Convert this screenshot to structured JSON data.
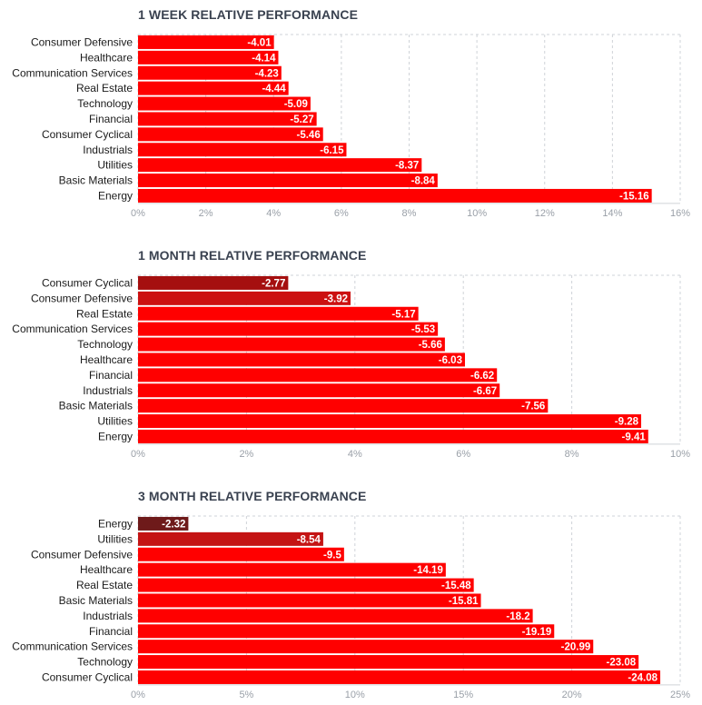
{
  "chart_data": [
    {
      "type": "bar",
      "orientation": "horizontal",
      "title": "1 WEEK RELATIVE PERFORMANCE",
      "categories": [
        "Consumer Defensive",
        "Healthcare",
        "Communication Services",
        "Real Estate",
        "Technology",
        "Financial",
        "Consumer Cyclical",
        "Industrials",
        "Utilities",
        "Basic Materials",
        "Energy"
      ],
      "values": [
        -4.01,
        -4.14,
        -4.23,
        -4.44,
        -5.09,
        -5.27,
        -5.46,
        -6.15,
        -8.37,
        -8.84,
        -15.16
      ],
      "value_labels": [
        "-4.01",
        "-4.14",
        "-4.23",
        "-4.44",
        "-5.09",
        "-5.27",
        "-5.46",
        "-6.15",
        "-8.37",
        "-8.84",
        "-15.16"
      ],
      "bar_colors": [
        "#ff0000",
        "#ff0000",
        "#ff0000",
        "#ff0000",
        "#ff0000",
        "#ff0000",
        "#ff0000",
        "#ff0000",
        "#ff0000",
        "#ff0000",
        "#ff0000"
      ],
      "xlim": [
        0,
        16
      ],
      "xticks": [
        "0%",
        "2%",
        "4%",
        "6%",
        "8%",
        "10%",
        "12%",
        "14%",
        "16%"
      ],
      "grid": true
    },
    {
      "type": "bar",
      "orientation": "horizontal",
      "title": "1 MONTH RELATIVE PERFORMANCE",
      "categories": [
        "Consumer Cyclical",
        "Consumer Defensive",
        "Real Estate",
        "Communication Services",
        "Technology",
        "Healthcare",
        "Financial",
        "Industrials",
        "Basic Materials",
        "Utilities",
        "Energy"
      ],
      "values": [
        -2.77,
        -3.92,
        -5.17,
        -5.53,
        -5.66,
        -6.03,
        -6.62,
        -6.67,
        -7.56,
        -9.28,
        -9.41
      ],
      "value_labels": [
        "-2.77",
        "-3.92",
        "-5.17",
        "-5.53",
        "-5.66",
        "-6.03",
        "-6.62",
        "-6.67",
        "-7.56",
        "-9.28",
        "-9.41"
      ],
      "bar_colors": [
        "#a50f0f",
        "#cc1111",
        "#ff0000",
        "#ff0000",
        "#ff0000",
        "#ff0000",
        "#ff0000",
        "#ff0000",
        "#ff0000",
        "#ff0000",
        "#ff0000"
      ],
      "xlim": [
        0,
        10
      ],
      "xticks": [
        "0%",
        "2%",
        "4%",
        "6%",
        "8%",
        "10%"
      ],
      "grid": true
    },
    {
      "type": "bar",
      "orientation": "horizontal",
      "title": "3 MONTH RELATIVE PERFORMANCE",
      "categories": [
        "Energy",
        "Utilities",
        "Consumer Defensive",
        "Healthcare",
        "Real Estate",
        "Basic Materials",
        "Industrials",
        "Financial",
        "Communication Services",
        "Technology",
        "Consumer Cyclical"
      ],
      "values": [
        -2.32,
        -8.54,
        -9.5,
        -14.19,
        -15.48,
        -15.81,
        -18.2,
        -19.19,
        -20.99,
        -23.08,
        -24.08
      ],
      "value_labels": [
        "-2.32",
        "-8.54",
        "-9.5",
        "-14.19",
        "-15.48",
        "-15.81",
        "-18.2",
        "-19.19",
        "-20.99",
        "-23.08",
        "-24.08"
      ],
      "bar_colors": [
        "#6e1a1a",
        "#c41414",
        "#ff0000",
        "#ff0000",
        "#ff0000",
        "#ff0000",
        "#ff0000",
        "#ff0000",
        "#ff0000",
        "#ff0000",
        "#ff0000"
      ],
      "xlim": [
        0,
        25
      ],
      "xticks": [
        "0%",
        "5%",
        "10%",
        "15%",
        "20%",
        "25%"
      ],
      "grid": true
    }
  ]
}
